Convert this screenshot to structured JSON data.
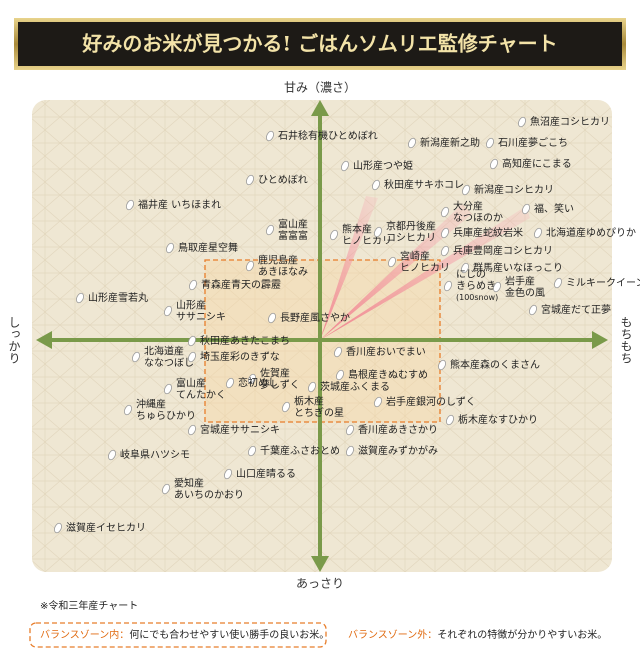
{
  "title": "好みのお米が見つかる! ごはんソムリエ監修チャート",
  "axes": {
    "top": "甘み（濃さ）",
    "bottom": "あっさり",
    "left": "しっかり",
    "right": "もちもち"
  },
  "items": [
    {
      "lines": [
        "魚沼産コシヒカリ"
      ]
    },
    {
      "lines": [
        "石井稔有機ひとめぼれ"
      ]
    },
    {
      "lines": [
        "新潟産新之助"
      ]
    },
    {
      "lines": [
        "石川産夢ごこち"
      ]
    },
    {
      "lines": [
        "山形産つや姫"
      ]
    },
    {
      "lines": [
        "高知産にこまる"
      ]
    },
    {
      "lines": [
        "ひとめぼれ"
      ]
    },
    {
      "lines": [
        "秋田産サキホコレ"
      ]
    },
    {
      "lines": [
        "新潟産コシヒカリ"
      ]
    },
    {
      "lines": [
        "福井産 いちほまれ"
      ]
    },
    {
      "lines": [
        "大分産",
        "なつほのか"
      ]
    },
    {
      "lines": [
        "福、笑い"
      ]
    },
    {
      "lines": [
        "富山産",
        "富富富"
      ]
    },
    {
      "lines": [
        "熊本産",
        "ヒノヒカリ"
      ]
    },
    {
      "lines": [
        "京都丹後産",
        "コシヒカリ"
      ]
    },
    {
      "lines": [
        "兵庫産蛇紋岩米"
      ]
    },
    {
      "lines": [
        "北海道産ゆめぴりか"
      ]
    },
    {
      "lines": [
        "鳥取産星空舞"
      ]
    },
    {
      "lines": [
        "兵庫豊岡産コシヒカリ"
      ]
    },
    {
      "lines": [
        "鹿児島産",
        "あきほなみ"
      ]
    },
    {
      "lines": [
        "宮崎産",
        "ヒノヒカリ"
      ]
    },
    {
      "lines": [
        "群馬産いなほっこり"
      ]
    },
    {
      "lines": [
        "ミルキークイーン"
      ]
    },
    {
      "lines": [
        "青森産青天の霹靂"
      ]
    },
    {
      "lines": [
        "にじの",
        "きらめき",
        "(100snow)"
      ]
    },
    {
      "lines": [
        "岩手産",
        "金色の風"
      ]
    },
    {
      "lines": [
        "山形産雪若丸"
      ]
    },
    {
      "lines": [
        "山形産",
        "ササニシキ"
      ]
    },
    {
      "lines": [
        "長野産風さやか"
      ]
    },
    {
      "lines": [
        "宮城産だて正夢"
      ]
    },
    {
      "lines": [
        "秋田産あきたこまち"
      ]
    },
    {
      "lines": [
        "香川産おいでまい"
      ]
    },
    {
      "lines": [
        "北海道産",
        "ななつぼし"
      ]
    },
    {
      "lines": [
        "埼玉産彩のきずな"
      ]
    },
    {
      "lines": [
        "熊本産森のくまさん"
      ]
    },
    {
      "lines": [
        "佐賀産",
        "夢しずく"
      ]
    },
    {
      "lines": [
        "島根産きぬむすめ"
      ]
    },
    {
      "lines": [
        "富山産",
        "てんたかく"
      ]
    },
    {
      "lines": [
        "恋初めし"
      ]
    },
    {
      "lines": [
        "茨城産ふくまる"
      ]
    },
    {
      "lines": [
        "栃木産",
        "とちぎの星"
      ]
    },
    {
      "lines": [
        "沖縄産",
        "ちゅらひかり"
      ]
    },
    {
      "lines": [
        "岩手産銀河のしずく"
      ]
    },
    {
      "lines": [
        "栃木産なすひかり"
      ]
    },
    {
      "lines": [
        "宮城産ササニシキ"
      ]
    },
    {
      "lines": [
        "香川産あきさかり"
      ]
    },
    {
      "lines": [
        "岐阜県ハツシモ"
      ]
    },
    {
      "lines": [
        "千葉産ふさおとめ"
      ]
    },
    {
      "lines": [
        "滋賀産みずかがみ"
      ]
    },
    {
      "lines": [
        "山口産晴るる"
      ]
    },
    {
      "lines": [
        "愛知産",
        "あいちのかおり"
      ]
    },
    {
      "lines": [
        "滋賀産イセヒカリ"
      ]
    }
  ],
  "note": "※令和三年産チャート",
  "legend": [
    {
      "label": "バランスゾーン内：",
      "text": "何にでも合わせやすい使い勝手の良いお米。"
    },
    {
      "label": "バランスゾーン外：",
      "text": "それぞれの特徴が分かりやすいお米。"
    }
  ]
}
